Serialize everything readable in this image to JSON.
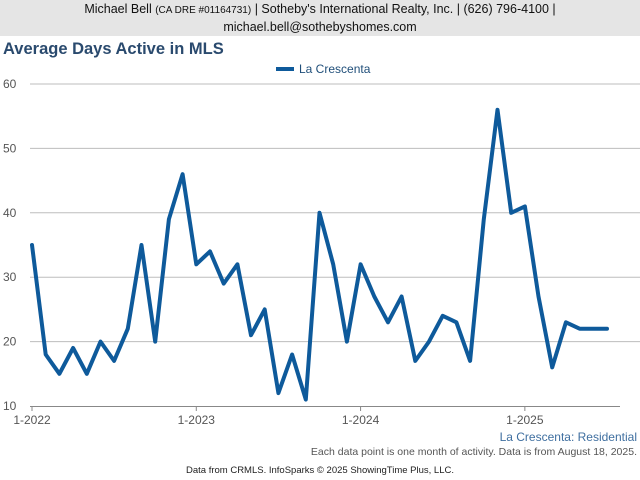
{
  "header": {
    "name": "Michael Bell",
    "license": "(CA DRE #01164731)",
    "company_phone": "| Sotheby's International Realty, Inc. | (626) 796-4100 |",
    "email": "michael.bell@sothebyshomes.com"
  },
  "series_caption": "La Crescenta: Residential",
  "note": "Each data point is one month of activity. Data is from August 18, 2025.",
  "footer": "Data from CRMLS. InfoSparks © 2025 ShowingTime Plus, LLC.",
  "chart_data": {
    "type": "line",
    "title": "Average Days Active in MLS",
    "xlabel": "",
    "ylabel": "",
    "ylim": [
      10,
      60
    ],
    "yticks": [
      "10",
      "20",
      "30",
      "40",
      "50",
      "60"
    ],
    "xticks": [
      {
        "label": "1-2022",
        "month": "2022-01"
      },
      {
        "label": "1-2023",
        "month": "2023-01"
      },
      {
        "label": "1-2024",
        "month": "2024-01"
      },
      {
        "label": "1-2025",
        "month": "2025-01"
      }
    ],
    "grid": true,
    "legend": "top-center",
    "color": "#0e5a9b",
    "series": [
      {
        "name": "La Crescenta",
        "x": [
          "2022-01",
          "2022-02",
          "2022-03",
          "2022-04",
          "2022-05",
          "2022-06",
          "2022-07",
          "2022-08",
          "2022-09",
          "2022-10",
          "2022-11",
          "2022-12",
          "2023-01",
          "2023-02",
          "2023-03",
          "2023-04",
          "2023-05",
          "2023-06",
          "2023-07",
          "2023-08",
          "2023-09",
          "2023-10",
          "2023-11",
          "2023-12",
          "2024-01",
          "2024-02",
          "2024-03",
          "2024-04",
          "2024-05",
          "2024-06",
          "2024-07",
          "2024-08",
          "2024-09",
          "2024-10",
          "2024-11",
          "2024-12",
          "2025-01",
          "2025-02",
          "2025-03",
          "2025-04",
          "2025-05",
          "2025-06",
          "2025-07"
        ],
        "values": [
          35,
          18,
          15,
          19,
          15,
          20,
          17,
          22,
          35,
          20,
          39,
          46,
          32,
          34,
          29,
          32,
          21,
          25,
          12,
          18,
          11,
          40,
          32,
          20,
          32,
          27,
          23,
          27,
          17,
          20,
          24,
          23,
          17,
          39,
          56,
          40,
          41,
          27,
          16,
          23,
          22,
          22,
          22
        ]
      }
    ]
  }
}
